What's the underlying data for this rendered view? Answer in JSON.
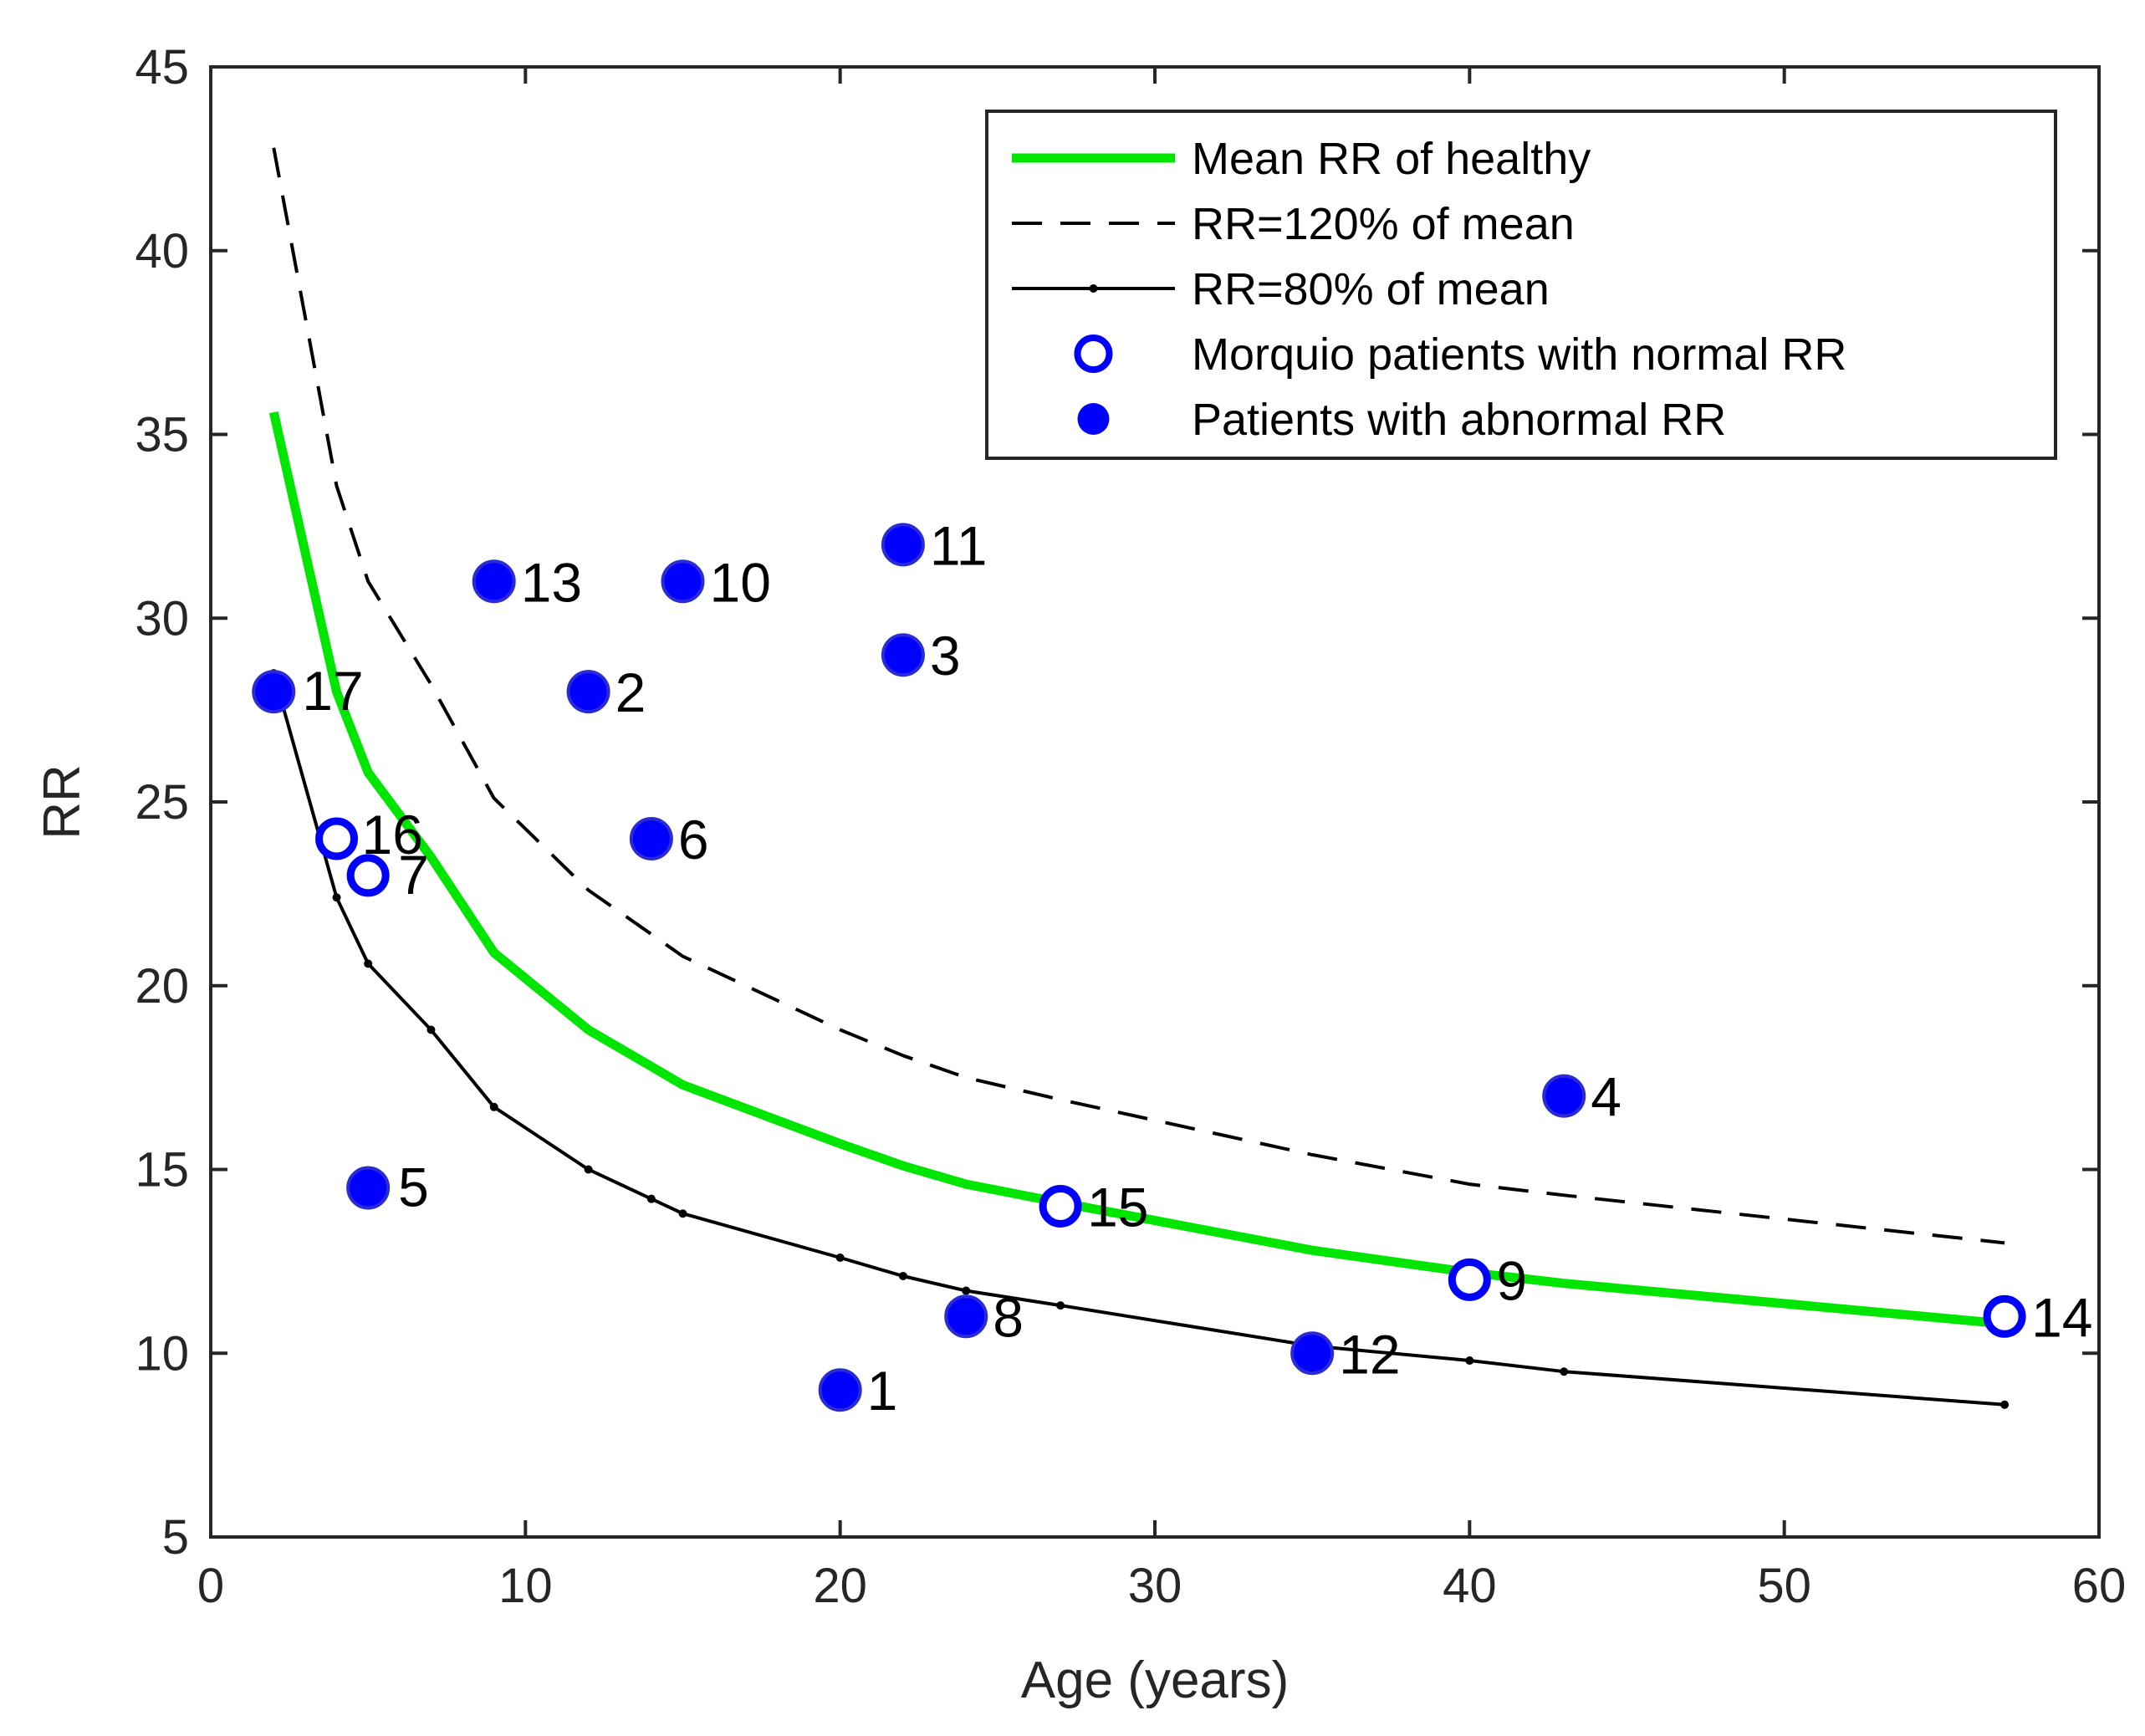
{
  "chart_data": {
    "type": "scatter",
    "title": "",
    "xlabel": "Age (years)",
    "ylabel": "RR",
    "xlim": [
      0,
      60
    ],
    "ylim": [
      5,
      45
    ],
    "x_ticks": [
      0,
      10,
      20,
      30,
      40,
      50,
      60
    ],
    "y_ticks": [
      5,
      10,
      15,
      20,
      25,
      30,
      35,
      40,
      45
    ],
    "grid": false,
    "legend_position": "top-right",
    "curve_x": [
      2,
      4,
      5,
      7,
      9,
      12,
      14,
      15,
      20,
      22,
      24,
      27,
      35,
      40,
      43,
      57
    ],
    "series": [
      {
        "name": "Mean RR of healthy",
        "kind": "line",
        "color": "#00e600",
        "values": [
          35.6,
          28.0,
          25.8,
          23.5,
          20.9,
          18.8,
          17.8,
          17.3,
          15.7,
          15.1,
          14.6,
          14.1,
          12.8,
          12.2,
          11.9,
          10.8
        ]
      },
      {
        "name": "RR=120% of mean",
        "kind": "dashed-line",
        "color": "#000000",
        "values": [
          42.8,
          33.6,
          31.0,
          28.2,
          25.1,
          22.6,
          21.4,
          20.8,
          18.8,
          18.1,
          17.5,
          16.9,
          15.4,
          14.6,
          14.3,
          13.0
        ]
      },
      {
        "name": "RR=80% of mean",
        "kind": "line-with-dot-markers",
        "color": "#000000",
        "values": [
          28.5,
          22.4,
          20.6,
          18.8,
          16.7,
          15.0,
          14.2,
          13.8,
          12.6,
          12.1,
          11.7,
          11.3,
          10.2,
          9.8,
          9.5,
          8.6
        ]
      },
      {
        "name": "Morquio patients with normal RR",
        "kind": "open-circle",
        "color": "#0000ff",
        "points": [
          {
            "label": "16",
            "x": 4,
            "y": 24
          },
          {
            "label": "7",
            "x": 5,
            "y": 23
          },
          {
            "label": "15",
            "x": 27,
            "y": 14
          },
          {
            "label": "9",
            "x": 40,
            "y": 12
          },
          {
            "label": "14",
            "x": 57,
            "y": 11
          }
        ]
      },
      {
        "name": "Patients with abnormal RR",
        "kind": "filled-circle",
        "color": "#0000ff",
        "points": [
          {
            "label": "17",
            "x": 2,
            "y": 28
          },
          {
            "label": "13",
            "x": 9,
            "y": 31
          },
          {
            "label": "10",
            "x": 15,
            "y": 31
          },
          {
            "label": "11",
            "x": 22,
            "y": 32
          },
          {
            "label": "3",
            "x": 22,
            "y": 29
          },
          {
            "label": "2",
            "x": 12,
            "y": 28
          },
          {
            "label": "6",
            "x": 14,
            "y": 24
          },
          {
            "label": "5",
            "x": 5,
            "y": 14.5
          },
          {
            "label": "4",
            "x": 43,
            "y": 17
          },
          {
            "label": "8",
            "x": 24,
            "y": 11
          },
          {
            "label": "1",
            "x": 20,
            "y": 9
          },
          {
            "label": "12",
            "x": 35,
            "y": 10
          }
        ]
      }
    ]
  }
}
